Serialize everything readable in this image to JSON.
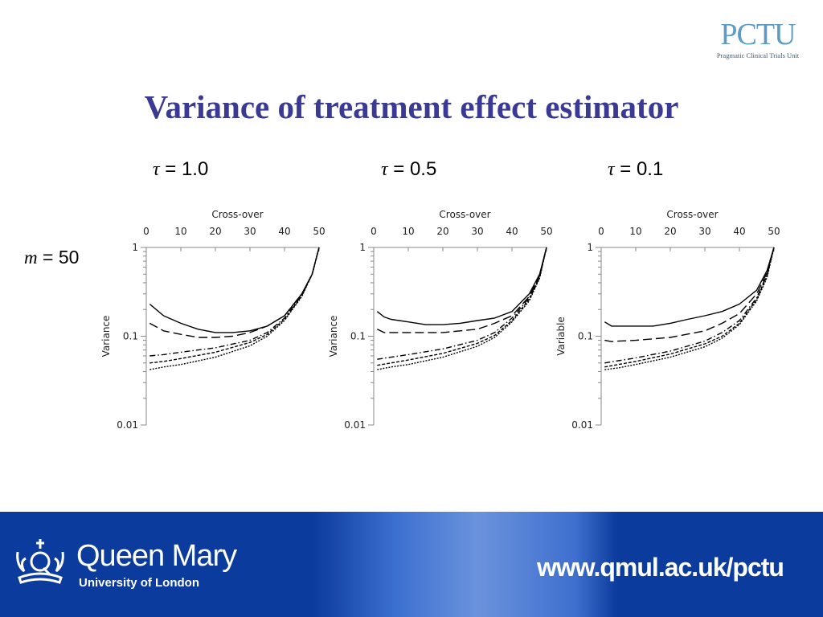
{
  "logo": {
    "text": "PCTU",
    "subtitle": "Pragmatic Clinical Trials Unit",
    "color": "#5b9bc4"
  },
  "title": "Variance of treatment effect estimator",
  "title_color": "#3a3a95",
  "row_label": {
    "symbol": "m",
    "value": "= 50"
  },
  "footer": {
    "institution": "Queen Mary",
    "subtitle": "University of London",
    "url": "www.qmul.ac.uk/pctu",
    "background": "#0b3b9c"
  },
  "chart_data": [
    {
      "type": "line",
      "heading_symbol": "τ",
      "heading_value": "= 1.0",
      "xlabel": "Cross-over",
      "ylabel": "Variance",
      "xlim": [
        0,
        50
      ],
      "ylim": [
        0.01,
        1
      ],
      "yscale": "log",
      "xticks": [
        "0",
        "10",
        "20",
        "30",
        "40",
        "50"
      ],
      "yticks": [
        "1",
        "0.1",
        "0.01"
      ],
      "grid": false,
      "series": [
        {
          "style": "solid",
          "x": [
            1,
            5,
            10,
            15,
            20,
            25,
            30,
            35,
            40,
            45,
            48,
            50
          ],
          "y": [
            0.23,
            0.17,
            0.14,
            0.12,
            0.11,
            0.11,
            0.115,
            0.13,
            0.17,
            0.3,
            0.5,
            1
          ]
        },
        {
          "style": "long-dash",
          "x": [
            1,
            5,
            10,
            15,
            20,
            25,
            30,
            35,
            40,
            45,
            48,
            50
          ],
          "y": [
            0.14,
            0.115,
            0.105,
            0.097,
            0.097,
            0.1,
            0.11,
            0.13,
            0.17,
            0.3,
            0.5,
            1
          ]
        },
        {
          "style": "dash-dot",
          "x": [
            1,
            5,
            10,
            20,
            30,
            35,
            40,
            45,
            48,
            50
          ],
          "y": [
            0.06,
            0.062,
            0.066,
            0.074,
            0.09,
            0.11,
            0.16,
            0.29,
            0.5,
            1
          ]
        },
        {
          "style": "short-dash",
          "x": [
            1,
            5,
            10,
            20,
            30,
            35,
            40,
            45,
            48,
            50
          ],
          "y": [
            0.05,
            0.052,
            0.056,
            0.066,
            0.085,
            0.105,
            0.155,
            0.285,
            0.5,
            1
          ]
        },
        {
          "style": "dotted",
          "x": [
            1,
            5,
            10,
            20,
            30,
            35,
            40,
            45,
            48,
            50
          ],
          "y": [
            0.042,
            0.045,
            0.048,
            0.058,
            0.078,
            0.1,
            0.15,
            0.28,
            0.5,
            1
          ]
        }
      ]
    },
    {
      "type": "line",
      "heading_symbol": "τ",
      "heading_value": "= 0.5",
      "xlabel": "Cross-over",
      "ylabel": "Variance",
      "xlim": [
        0,
        50
      ],
      "ylim": [
        0.01,
        1
      ],
      "yscale": "log",
      "xticks": [
        "0",
        "10",
        "20",
        "30",
        "40",
        "50"
      ],
      "yticks": [
        "1",
        "0.1",
        "0.01"
      ],
      "grid": false,
      "series": [
        {
          "style": "solid",
          "x": [
            1,
            3,
            5,
            10,
            15,
            20,
            25,
            30,
            35,
            40,
            45,
            48,
            50
          ],
          "y": [
            0.19,
            0.165,
            0.155,
            0.145,
            0.135,
            0.135,
            0.14,
            0.15,
            0.16,
            0.19,
            0.3,
            0.5,
            1
          ]
        },
        {
          "style": "long-dash",
          "x": [
            1,
            3,
            5,
            10,
            20,
            30,
            35,
            40,
            45,
            48,
            50
          ],
          "y": [
            0.12,
            0.11,
            0.11,
            0.11,
            0.11,
            0.12,
            0.14,
            0.17,
            0.28,
            0.48,
            1
          ]
        },
        {
          "style": "dash-dot",
          "x": [
            1,
            5,
            10,
            20,
            30,
            35,
            40,
            45,
            48,
            50
          ],
          "y": [
            0.055,
            0.058,
            0.062,
            0.072,
            0.09,
            0.11,
            0.16,
            0.27,
            0.47,
            1
          ]
        },
        {
          "style": "short-dash",
          "x": [
            1,
            5,
            10,
            20,
            30,
            35,
            40,
            45,
            48,
            50
          ],
          "y": [
            0.047,
            0.05,
            0.054,
            0.064,
            0.083,
            0.102,
            0.15,
            0.26,
            0.46,
            1
          ]
        },
        {
          "style": "dotted",
          "x": [
            1,
            5,
            10,
            20,
            30,
            35,
            40,
            45,
            48,
            50
          ],
          "y": [
            0.042,
            0.045,
            0.048,
            0.058,
            0.077,
            0.097,
            0.145,
            0.25,
            0.45,
            1
          ]
        }
      ]
    },
    {
      "type": "line",
      "heading_symbol": "τ",
      "heading_value": "= 0.1",
      "xlabel": "Cross-over",
      "ylabel": "Variable",
      "xlim": [
        0,
        50
      ],
      "ylim": [
        0.01,
        1
      ],
      "yscale": "log",
      "xticks": [
        "0",
        "10",
        "20",
        "30",
        "40",
        "50"
      ],
      "yticks": [
        "1",
        "0.1",
        "0.01"
      ],
      "grid": false,
      "series": [
        {
          "style": "solid",
          "x": [
            1,
            3,
            5,
            10,
            15,
            20,
            25,
            30,
            35,
            40,
            45,
            48,
            50
          ],
          "y": [
            0.145,
            0.13,
            0.13,
            0.13,
            0.13,
            0.14,
            0.155,
            0.17,
            0.19,
            0.23,
            0.33,
            0.55,
            1
          ]
        },
        {
          "style": "long-dash",
          "x": [
            1,
            3,
            5,
            10,
            20,
            30,
            35,
            40,
            45,
            48,
            50
          ],
          "y": [
            0.09,
            0.087,
            0.088,
            0.09,
            0.097,
            0.115,
            0.14,
            0.18,
            0.3,
            0.52,
            1
          ]
        },
        {
          "style": "dash-dot",
          "x": [
            1,
            5,
            10,
            20,
            30,
            35,
            40,
            45,
            48,
            50
          ],
          "y": [
            0.05,
            0.053,
            0.057,
            0.068,
            0.088,
            0.11,
            0.15,
            0.27,
            0.5,
            1
          ]
        },
        {
          "style": "short-dash",
          "x": [
            1,
            5,
            10,
            20,
            30,
            35,
            40,
            45,
            48,
            50
          ],
          "y": [
            0.045,
            0.048,
            0.052,
            0.063,
            0.082,
            0.1,
            0.14,
            0.26,
            0.48,
            1
          ]
        },
        {
          "style": "dotted",
          "x": [
            1,
            5,
            10,
            20,
            30,
            35,
            40,
            45,
            48,
            50
          ],
          "y": [
            0.042,
            0.044,
            0.048,
            0.058,
            0.076,
            0.095,
            0.135,
            0.25,
            0.46,
            1
          ]
        }
      ]
    }
  ]
}
